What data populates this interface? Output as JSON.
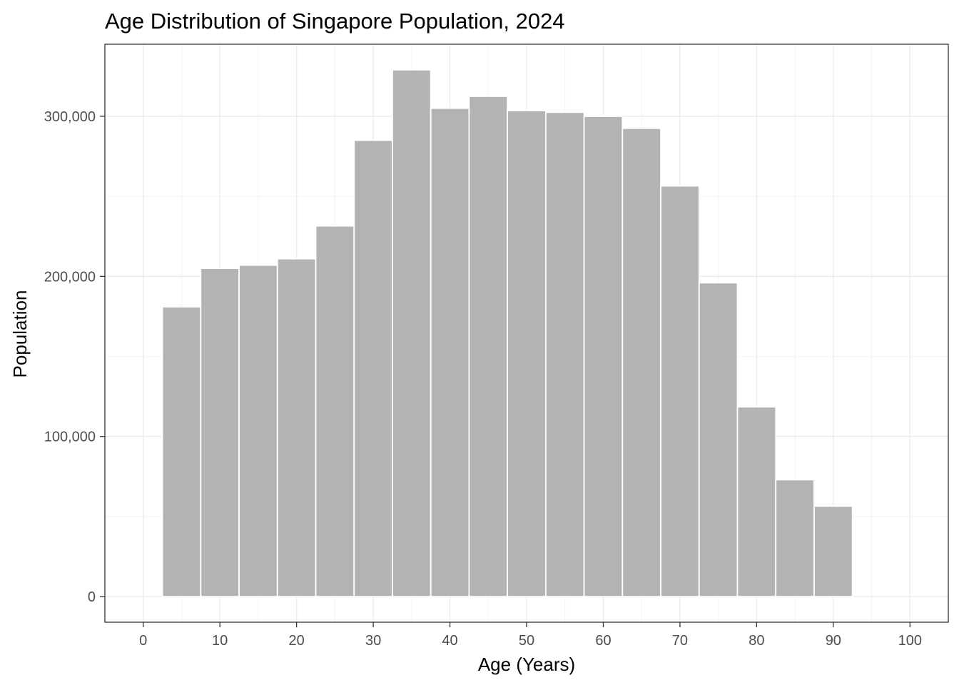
{
  "chart_data": {
    "type": "bar",
    "title": "Age Distribution of Singapore Population, 2024",
    "xlabel": "Age (Years)",
    "ylabel": "Population",
    "bin_width": 5,
    "x": [
      5,
      10,
      15,
      20,
      25,
      30,
      35,
      40,
      45,
      50,
      55,
      60,
      65,
      70,
      75,
      80,
      85,
      90
    ],
    "values": [
      181000,
      205000,
      207000,
      211000,
      231500,
      285000,
      329000,
      305000,
      312500,
      303500,
      302500,
      300000,
      292500,
      256500,
      196000,
      118500,
      73000,
      56500
    ],
    "xlim": [
      -5,
      105
    ],
    "ylim": [
      -16000,
      345000
    ],
    "x_ticks": [
      0,
      10,
      20,
      30,
      40,
      50,
      60,
      70,
      80,
      90,
      100
    ],
    "x_tick_labels": [
      "0",
      "10",
      "20",
      "30",
      "40",
      "50",
      "60",
      "70",
      "80",
      "90",
      "100"
    ],
    "y_ticks": [
      0,
      100000,
      200000,
      300000
    ],
    "y_tick_labels": [
      "0",
      "100,000",
      "200,000",
      "300,000"
    ],
    "grid": true,
    "bar_fill": "#b3b3b3",
    "bar_outline": "#ffffff"
  }
}
